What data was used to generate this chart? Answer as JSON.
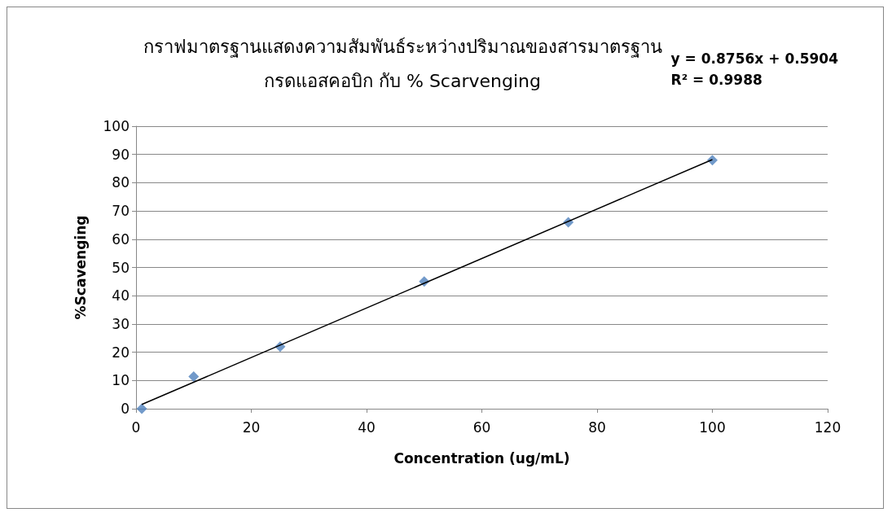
{
  "chart_data": {
    "type": "scatter",
    "title": "กราฟมาตรฐานแสดงความสัมพันธ์ระหว่างปริมาณของสารมาตรฐาน\nกรดแอสคอบิก กับ % Scarvenging",
    "xlabel": "Concentration (ug/mL)",
    "ylabel": "%Scavenging",
    "annotations": [
      "y = 0.8756x + 0.5904\nR² = 0.9988"
    ],
    "series": [
      {
        "color": "#4f81bd",
        "x": [
          1,
          10,
          25,
          50,
          75,
          100
        ],
        "values": [
          0,
          11.4,
          22,
          45,
          66,
          88
        ]
      },
      {
        "type": "line",
        "color": "#000000",
        "x": [
          1,
          100
        ],
        "values": [
          1.5,
          88.2
        ],
        "marker": "none"
      }
    ],
    "xlim": [
      0,
      120
    ],
    "xticks": [
      0,
      20,
      40,
      60,
      80,
      100,
      120
    ],
    "ylim": [
      0,
      100
    ],
    "yticks": [
      0,
      10,
      20,
      30,
      40,
      50,
      60,
      70,
      80,
      90,
      100
    ],
    "grid": "y",
    "marker": "diamond"
  }
}
